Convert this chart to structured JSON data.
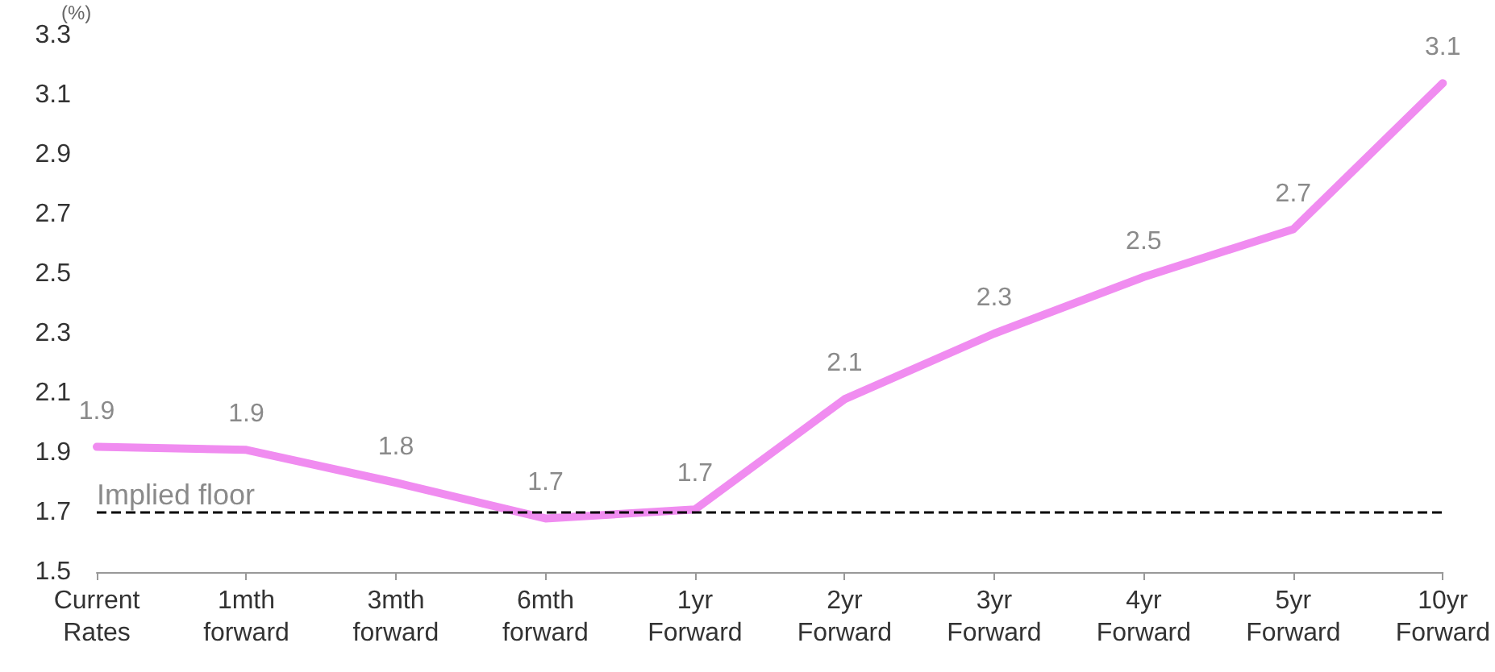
{
  "chart_data": {
    "type": "line",
    "ylabel": "(%)",
    "categories": [
      "Current\nRates",
      "1mth\nforward",
      "3mth\nforward",
      "6mth\nforward",
      "1yr\nForward",
      "2yr\nForward",
      "3yr\nForward",
      "4yr\nForward",
      "5yr\nForward",
      "10yr\nForward"
    ],
    "series": [
      {
        "color": "#f08cf0",
        "values": [
          1.92,
          1.91,
          1.8,
          1.68,
          1.71,
          2.08,
          2.3,
          2.49,
          2.65,
          3.14
        ],
        "value_labels": [
          "1.9",
          "1.9",
          "1.8",
          "1.7",
          "1.7",
          "2.1",
          "2.3",
          "2.5",
          "2.7",
          "3.1"
        ]
      }
    ],
    "ylim": [
      1.5,
      3.3
    ],
    "yticks": [
      1.5,
      1.7,
      1.9,
      2.1,
      2.3,
      2.5,
      2.7,
      2.9,
      3.1,
      3.3
    ],
    "ref_lines": [
      {
        "axis": "y",
        "value": 1.7,
        "label": "Implied floor",
        "color": "#000000",
        "line_style": "dashed"
      }
    ]
  }
}
